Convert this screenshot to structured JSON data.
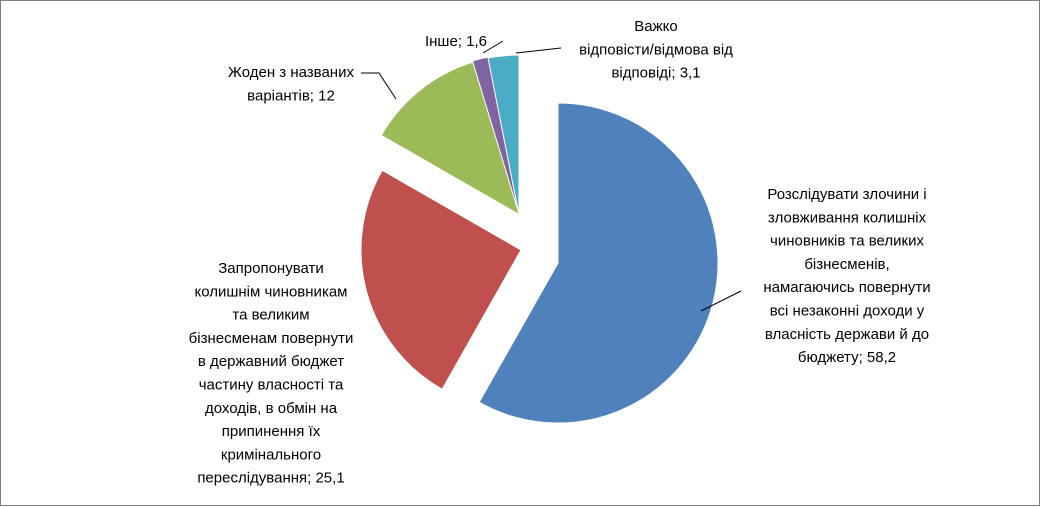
{
  "chart_data": {
    "type": "pie",
    "title": "",
    "unit": "%",
    "slices": [
      {
        "label_lines": [
          "Розслідувати злочини і",
          "зловживання колишніх",
          "чиновників та великих",
          "бізнесменів,",
          "намагаючись повернути",
          "всі незаконні доходи у",
          "власність держави й до",
          "бюджету; 58,2"
        ],
        "value": 58.2,
        "color": "#4f81bd"
      },
      {
        "label_lines": [
          "Запропонувати",
          "колишнім чиновникам",
          "та великим",
          "бізнесменам повернути",
          "в державний бюджет",
          "частину власності та",
          "доходів, в обмін на",
          "припинення їх",
          "кримінального",
          "переслідування; 25,1"
        ],
        "value": 25.1,
        "color": "#c0504d"
      },
      {
        "label_lines": [
          "Жоден з названих",
          "варіантів; 12"
        ],
        "value": 12,
        "color": "#9bbb59"
      },
      {
        "label_lines": [
          "Інше; 1,6"
        ],
        "value": 1.6,
        "color": "#8064a2"
      },
      {
        "label_lines": [
          "Важко",
          "відповісти/відмова від",
          "відповіді; 3,1"
        ],
        "value": 3.1,
        "color": "#4bacc6"
      }
    ]
  }
}
